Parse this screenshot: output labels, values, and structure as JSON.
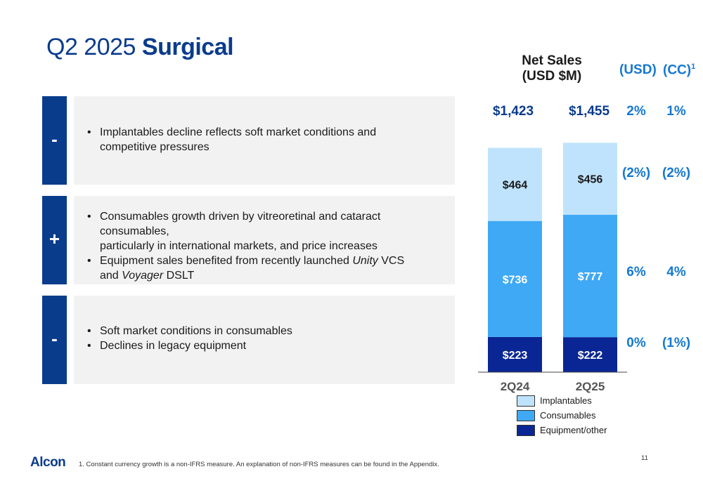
{
  "title": {
    "prefix": "Q2 2025",
    "emphasis": "Surgical"
  },
  "rows": [
    {
      "sign": "-",
      "bullets": [
        [
          {
            "t": "Implantables decline reflects soft market conditions and"
          }
        ],
        [
          {
            "t": "competitive pressures"
          }
        ]
      ],
      "cont": [
        false,
        true
      ]
    },
    {
      "sign": "+",
      "bullets": [
        [
          {
            "t": "Consumables growth driven by vitreoretinal and cataract consumables,"
          }
        ],
        [
          {
            "t": "particularly in international markets, and price increases"
          }
        ],
        [
          {
            "t": "Equipment sales benefited from recently launched "
          },
          {
            "t": "Unity",
            "i": true
          },
          {
            "t": " VCS"
          }
        ],
        [
          {
            "t": "and "
          },
          {
            "t": "Voyager",
            "i": true
          },
          {
            "t": " DSLT"
          }
        ]
      ],
      "cont": [
        false,
        true,
        false,
        true
      ]
    },
    {
      "sign": "-",
      "bullets": [
        [
          {
            "t": "Soft market conditions in consumables"
          }
        ],
        [
          {
            "t": "Declines in legacy equipment"
          }
        ]
      ],
      "cont": [
        false,
        false
      ]
    }
  ],
  "chart_data": {
    "type": "bar",
    "stacked": true,
    "title_line1": "Net Sales",
    "title_line2": "(USD $M)",
    "categories": [
      "2Q24",
      "2Q25"
    ],
    "totals": [
      "$1,423",
      "$1,455"
    ],
    "series": [
      {
        "name": "Equipment/other",
        "values": [
          223,
          222
        ],
        "labels": [
          "$223",
          "$222"
        ],
        "color": "#0a2694"
      },
      {
        "name": "Consumables",
        "values": [
          736,
          777
        ],
        "labels": [
          "$736",
          "$777"
        ],
        "color": "#3fa9f5"
      },
      {
        "name": "Implantables",
        "values": [
          464,
          456
        ],
        "labels": [
          "$464",
          "$456"
        ],
        "color": "#bfe3fd"
      }
    ],
    "growth": {
      "usd_label": "(USD)",
      "cc_label": "(CC)",
      "cc_footnote_mark": "1",
      "total": {
        "usd": "2%",
        "cc": "1%"
      },
      "implantables": {
        "usd": "(2%)",
        "cc": "(2%)"
      },
      "consumables": {
        "usd": "6%",
        "cc": "4%"
      },
      "equipment": {
        "usd": "0%",
        "cc": "(1%)"
      }
    },
    "legend_order": [
      "Implantables",
      "Consumables",
      "Equipment/other"
    ],
    "legend_colors": [
      "#bfe3fd",
      "#3fa9f5",
      "#0a2694"
    ]
  },
  "footer": {
    "logo": "Alcon",
    "footnote": "1.  Constant currency growth is a non-IFRS measure. An explanation of non-IFRS measures can be found in the Appendix.",
    "page": "11"
  }
}
